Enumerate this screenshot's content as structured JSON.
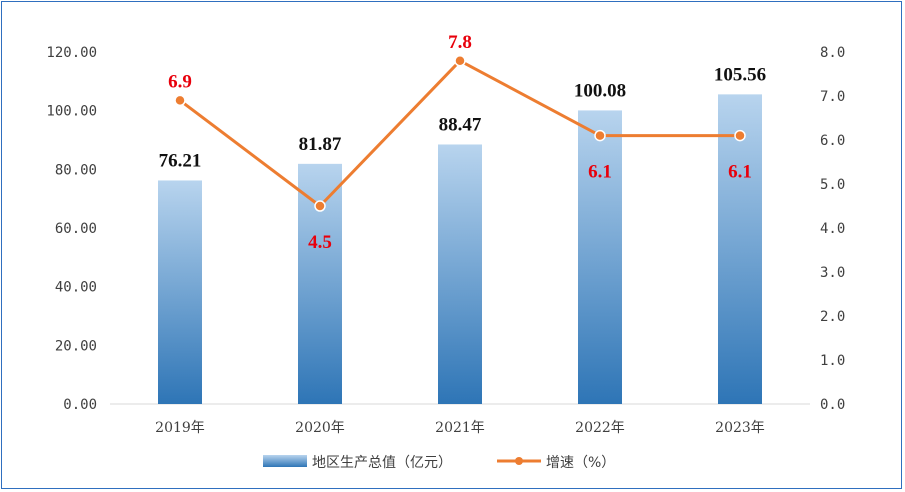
{
  "chart_data": {
    "type": "bar",
    "categories": [
      "2019年",
      "2020年",
      "2021年",
      "2022年",
      "2023年"
    ],
    "series": [
      {
        "name": "地区生产总值（亿元）",
        "type": "bar",
        "axis": "left",
        "values": [
          76.21,
          81.87,
          88.47,
          100.08,
          105.56
        ],
        "labels": [
          "76.21",
          "81.87",
          "88.47",
          "100.08",
          "105.56"
        ]
      },
      {
        "name": "增速（%）",
        "type": "line",
        "axis": "right",
        "values": [
          6.9,
          4.5,
          7.8,
          6.1,
          6.1
        ],
        "labels": [
          "6.9",
          "4.5",
          "7.8",
          "6.1",
          "6.1"
        ]
      }
    ],
    "y_left": {
      "ylim": [
        0,
        120
      ],
      "ticks": [
        "0.00",
        "20.00",
        "40.00",
        "60.00",
        "80.00",
        "100.00",
        "120.00"
      ]
    },
    "y_right": {
      "ylim": [
        0,
        8
      ],
      "ticks": [
        "0.0",
        "1.0",
        "2.0",
        "3.0",
        "4.0",
        "5.0",
        "6.0",
        "7.0",
        "8.0"
      ]
    },
    "legend_position": "bottom",
    "grid": false,
    "colors": {
      "bar_top": "#b8d4ee",
      "bar_bottom": "#2e75b6",
      "line": "#ed7d31",
      "line_label": "#e8000b",
      "frame": "#2f6fbf"
    }
  }
}
